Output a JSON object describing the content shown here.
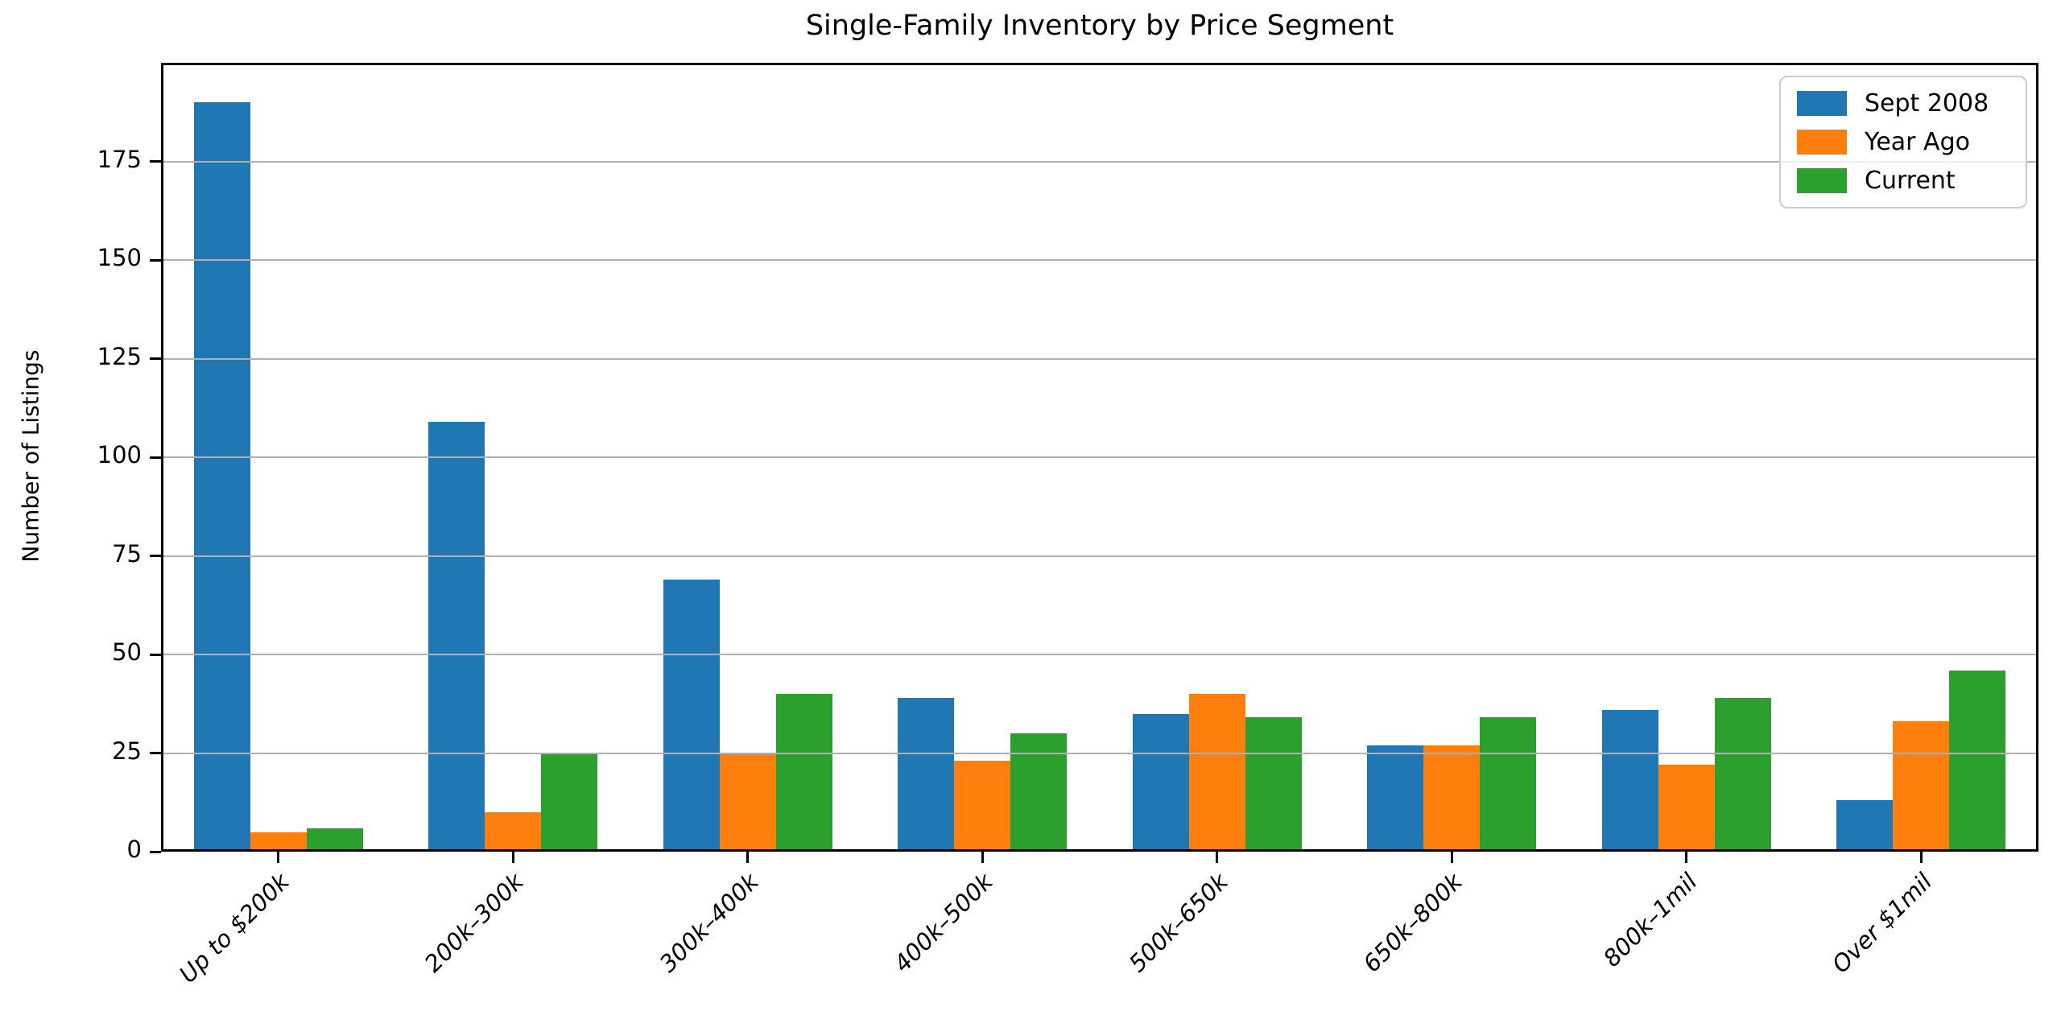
{
  "chart_data": {
    "type": "bar",
    "title": "Single-Family Inventory by Price Segment",
    "xlabel": "",
    "ylabel": "Number of Listings",
    "categories": [
      "Up to $200k",
      "200k–300k",
      "300k–400k",
      "400k–500k",
      "500k–650k",
      "650k–800k",
      "800k–1mil",
      "Over $1mil"
    ],
    "series": [
      {
        "name": "Sept 2008",
        "color": "#1f77b4",
        "values": [
          190,
          109,
          69,
          39,
          35,
          27,
          36,
          13
        ]
      },
      {
        "name": "Year Ago",
        "color": "#ff7f0e",
        "values": [
          5,
          10,
          25,
          23,
          40,
          27,
          22,
          33
        ]
      },
      {
        "name": "Current",
        "color": "#2ca02c",
        "values": [
          6,
          25,
          40,
          30,
          34,
          34,
          39,
          46
        ]
      }
    ],
    "ylim": [
      0,
      200
    ],
    "yticks": [
      0,
      25,
      50,
      75,
      100,
      125,
      150,
      175
    ],
    "grid": "horizontal",
    "grid_color": "#b0b0b0",
    "grid_above_bars": true,
    "legend_position": "upper right",
    "axis_color": "#000000",
    "background_color": "#ffffff"
  }
}
